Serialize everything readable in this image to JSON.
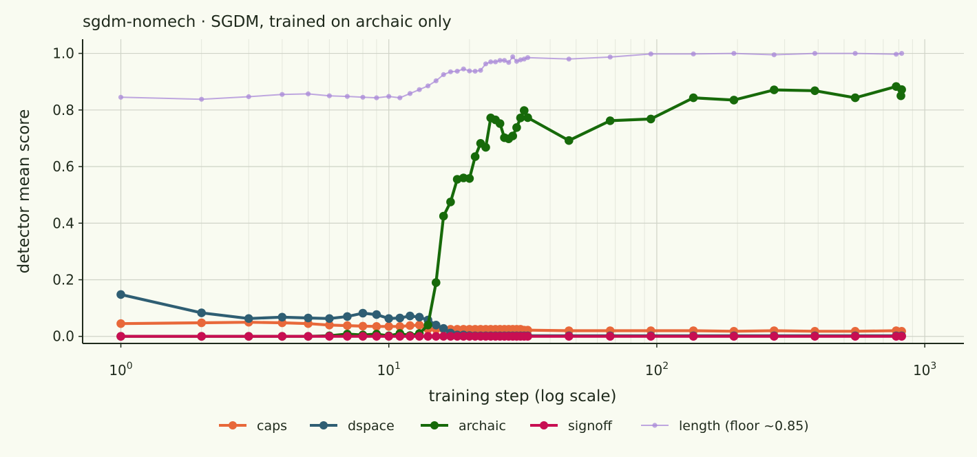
{
  "chart_data": {
    "type": "line",
    "title": "sgdm-nomech · SGDM, trained on archaic only",
    "xlabel": "training step (log scale)",
    "ylabel": "detector mean score",
    "xscale": "log",
    "xlim": [
      0.72,
      1400
    ],
    "ylim": [
      -0.025,
      1.05
    ],
    "grid": true,
    "legend_position": "bottom-center",
    "x_ticks": [
      {
        "value": 1,
        "base": "10",
        "exp": "0"
      },
      {
        "value": 10,
        "base": "10",
        "exp": "1"
      },
      {
        "value": 100,
        "base": "10",
        "exp": "2"
      },
      {
        "value": 1000,
        "base": "10",
        "exp": "3"
      }
    ],
    "y_ticks": [
      {
        "value": 0.0,
        "label": "0.0"
      },
      {
        "value": 0.2,
        "label": "0.2"
      },
      {
        "value": 0.4,
        "label": "0.4"
      },
      {
        "value": 0.6,
        "label": "0.6"
      },
      {
        "value": 0.8,
        "label": "0.8"
      },
      {
        "value": 1.0,
        "label": "1.0"
      }
    ],
    "series": [
      {
        "name": "caps",
        "color": "#e8683a",
        "style": "bold",
        "x": [
          1,
          2,
          3,
          4,
          5,
          6,
          7,
          8,
          9,
          10,
          11,
          12,
          13,
          14,
          15,
          16,
          17,
          18,
          19,
          20,
          21,
          22,
          23,
          24,
          25,
          26,
          27,
          28,
          29,
          30,
          31,
          32,
          33,
          47,
          67,
          95,
          137,
          194,
          274,
          389,
          550,
          782,
          820
        ],
        "y": [
          0.045,
          0.048,
          0.05,
          0.048,
          0.045,
          0.04,
          0.038,
          0.036,
          0.035,
          0.035,
          0.035,
          0.038,
          0.04,
          0.025,
          0.025,
          0.025,
          0.025,
          0.025,
          0.025,
          0.025,
          0.025,
          0.025,
          0.025,
          0.025,
          0.025,
          0.025,
          0.025,
          0.025,
          0.025,
          0.025,
          0.025,
          0.022,
          0.022,
          0.02,
          0.02,
          0.02,
          0.02,
          0.018,
          0.02,
          0.018,
          0.018,
          0.02,
          0.018
        ]
      },
      {
        "name": "dspace",
        "color": "#2f5e73",
        "style": "bold",
        "x": [
          1,
          2,
          3,
          4,
          5,
          6,
          7,
          8,
          9,
          10,
          11,
          12,
          13,
          14,
          15,
          16,
          17,
          18,
          19,
          20,
          21,
          22,
          23,
          24,
          25,
          26,
          27,
          28,
          29,
          30,
          31,
          32,
          33,
          47,
          67,
          95,
          137,
          194,
          274,
          389,
          550,
          782,
          820
        ],
        "y": [
          0.148,
          0.083,
          0.063,
          0.068,
          0.065,
          0.063,
          0.07,
          0.082,
          0.077,
          0.063,
          0.065,
          0.072,
          0.068,
          0.058,
          0.04,
          0.028,
          0.012,
          0.005,
          0.005,
          0.003,
          0.002,
          0.002,
          0.002,
          0.002,
          0.002,
          0.002,
          0.002,
          0.002,
          0.002,
          0.002,
          0.002,
          0.002,
          0.002,
          0.002,
          0.002,
          0.002,
          0.002,
          0.002,
          0.002,
          0.002,
          0.002,
          0.002,
          0.002
        ]
      },
      {
        "name": "archaic",
        "color": "#176a0a",
        "style": "bold",
        "x": [
          1,
          2,
          3,
          4,
          5,
          6,
          7,
          8,
          9,
          10,
          11,
          12,
          13,
          14,
          15,
          16,
          17,
          18,
          19,
          20,
          21,
          22,
          23,
          24,
          25,
          26,
          27,
          28,
          29,
          30,
          31,
          32,
          33,
          47,
          67,
          95,
          137,
          194,
          274,
          389,
          550,
          782,
          820,
          815
        ],
        "y": [
          0.0,
          0.0,
          0.0,
          0.0,
          0.0,
          0.002,
          0.008,
          0.005,
          0.008,
          0.002,
          0.01,
          0.003,
          0.01,
          0.04,
          0.19,
          0.425,
          0.475,
          0.555,
          0.56,
          0.558,
          0.635,
          0.682,
          0.668,
          0.772,
          0.765,
          0.752,
          0.702,
          0.698,
          0.708,
          0.738,
          0.772,
          0.798,
          0.773,
          0.692,
          0.762,
          0.768,
          0.843,
          0.835,
          0.871,
          0.868,
          0.843,
          0.883,
          0.872,
          0.85
        ]
      },
      {
        "name": "signoff",
        "color": "#c80e52",
        "style": "bold",
        "x": [
          1,
          2,
          3,
          4,
          5,
          6,
          7,
          8,
          9,
          10,
          11,
          12,
          13,
          14,
          15,
          16,
          17,
          18,
          19,
          20,
          21,
          22,
          23,
          24,
          25,
          26,
          27,
          28,
          29,
          30,
          31,
          32,
          33,
          47,
          67,
          95,
          137,
          194,
          274,
          389,
          550,
          782,
          820
        ],
        "y": [
          0.0,
          0.0,
          0.0,
          0.0,
          0.0,
          0.0,
          0.0,
          0.0,
          0.0,
          0.0,
          0.0,
          0.0,
          0.0,
          0.0,
          0.0,
          0.0,
          0.0,
          0.0,
          0.0,
          0.0,
          0.0,
          0.0,
          0.0,
          0.0,
          0.0,
          0.0,
          0.0,
          0.0,
          0.0,
          0.0,
          0.0,
          0.0,
          0.0,
          0.0,
          0.0,
          0.0,
          0.0,
          0.0,
          0.0,
          0.0,
          0.0,
          0.0,
          0.0
        ]
      },
      {
        "name": "length (floor ~0.85)",
        "color": "#a98ad8",
        "style": "light",
        "x": [
          1,
          2,
          3,
          4,
          5,
          6,
          7,
          8,
          9,
          10,
          11,
          12,
          13,
          14,
          15,
          16,
          17,
          18,
          19,
          20,
          21,
          22,
          23,
          24,
          25,
          26,
          27,
          28,
          29,
          30,
          31,
          32,
          33,
          47,
          67,
          95,
          137,
          194,
          274,
          389,
          550,
          782,
          820
        ],
        "y": [
          0.845,
          0.838,
          0.847,
          0.855,
          0.857,
          0.85,
          0.848,
          0.845,
          0.843,
          0.848,
          0.843,
          0.858,
          0.872,
          0.885,
          0.903,
          0.925,
          0.935,
          0.937,
          0.945,
          0.938,
          0.937,
          0.94,
          0.963,
          0.97,
          0.97,
          0.975,
          0.975,
          0.968,
          0.988,
          0.972,
          0.977,
          0.98,
          0.985,
          0.98,
          0.987,
          0.998,
          0.998,
          1.0,
          0.995,
          1.0,
          1.0,
          0.997,
          1.0
        ]
      }
    ]
  }
}
